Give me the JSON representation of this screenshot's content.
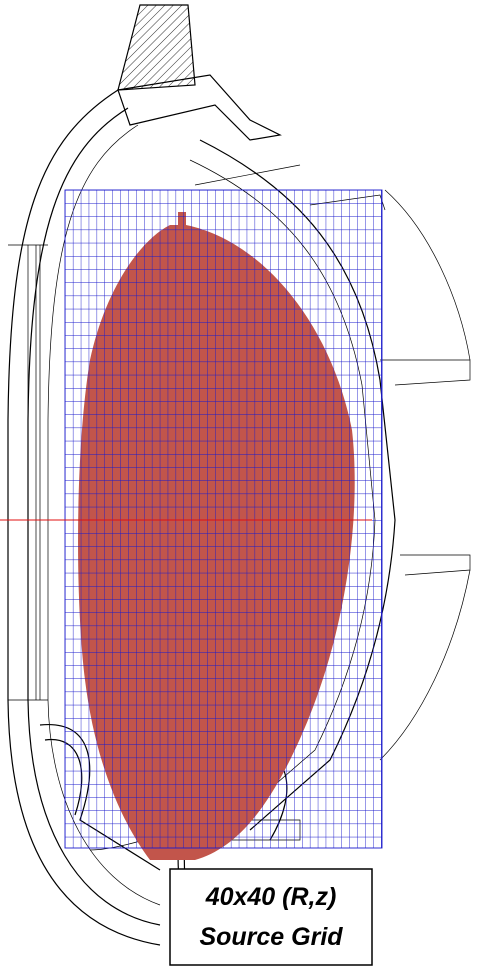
{
  "label": {
    "line1": "40x40 (R,z)",
    "line2": "Source Grid"
  }
}
